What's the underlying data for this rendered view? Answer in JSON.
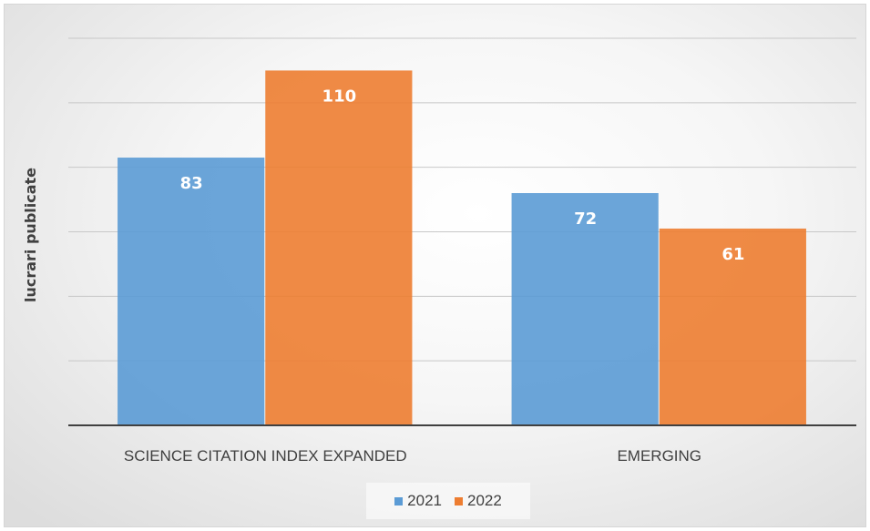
{
  "chart_data": {
    "type": "bar",
    "categories": [
      "SCIENCE CITATION INDEX EXPANDED",
      "EMERGING"
    ],
    "series": [
      {
        "name": "2021",
        "values": [
          83,
          72
        ],
        "color": "#5b9bd5"
      },
      {
        "name": "2022",
        "values": [
          110,
          61
        ],
        "color": "#ed7d31"
      }
    ],
    "ylabel": "lucrari publicate",
    "xlabel": "",
    "ylim": [
      0,
      120
    ],
    "grid": true,
    "legend": "bottom",
    "data_labels": true
  }
}
